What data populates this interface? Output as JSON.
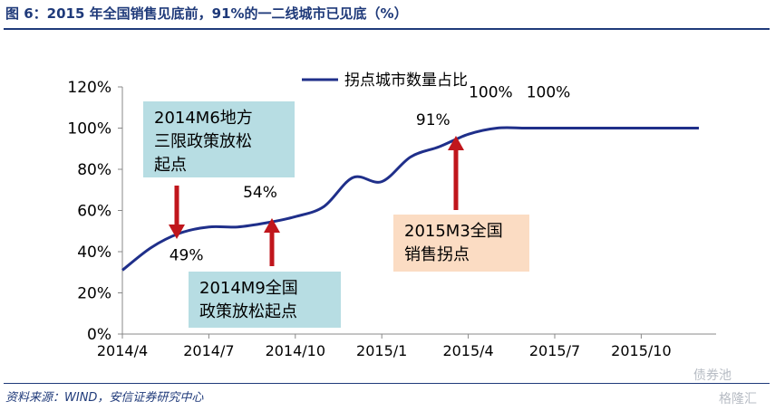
{
  "title": "图 6：2015 年全国销售见底前，91%的一二线城市已见底（%）",
  "source": "资料来源：WIND，安信证券研究中心",
  "watermark": {
    "top": "债券池",
    "bottom": "格隆汇"
  },
  "colors": {
    "line": "#1f2f8a",
    "arrow": "#c0161c",
    "annot_blue": "#b7dde3",
    "annot_orange": "#fbdcc3",
    "title": "#1f3a7a"
  },
  "chart_data": {
    "type": "line",
    "x_ticks": [
      "2014/4",
      "2014/7",
      "2014/10",
      "2015/1",
      "2015/4",
      "2015/7",
      "2015/10"
    ],
    "y_ticks": [
      "0%",
      "20%",
      "40%",
      "60%",
      "80%",
      "100%",
      "120%"
    ],
    "ylim": [
      0,
      120
    ],
    "series": [
      {
        "name": "拐点城市数量占比",
        "x": [
          "2014-04",
          "2014-05",
          "2014-06",
          "2014-07",
          "2014-08",
          "2014-09",
          "2014-10",
          "2014-11",
          "2014-12",
          "2015-01",
          "2015-02",
          "2015-03",
          "2015-04",
          "2015-05",
          "2015-06",
          "2015-07",
          "2015-08",
          "2015-09",
          "2015-10",
          "2015-11",
          "2015-12"
        ],
        "values": [
          31,
          42,
          49,
          52,
          52,
          54,
          57,
          62,
          76,
          74,
          86,
          91,
          97,
          100,
          100,
          100,
          100,
          100,
          100,
          100,
          100
        ]
      }
    ],
    "data_labels": [
      {
        "x": "2014-06",
        "text": "49%"
      },
      {
        "x": "2014-09",
        "text": "54%"
      },
      {
        "x": "2015-03",
        "text": "91%"
      },
      {
        "x": "2015-05",
        "text": "100%"
      },
      {
        "x": "2015-07",
        "text": "100%"
      }
    ],
    "annotations": [
      {
        "lines": [
          "2014M6地方",
          "三限政策放松",
          "起点"
        ],
        "style": "blue",
        "arrow": "down"
      },
      {
        "lines": [
          "2014M9全国",
          "政策放松起点"
        ],
        "style": "blue",
        "arrow": "up"
      },
      {
        "lines": [
          "2015M3全国",
          "销售拐点"
        ],
        "style": "orange",
        "arrow": "up"
      }
    ],
    "legend_position": "top"
  }
}
